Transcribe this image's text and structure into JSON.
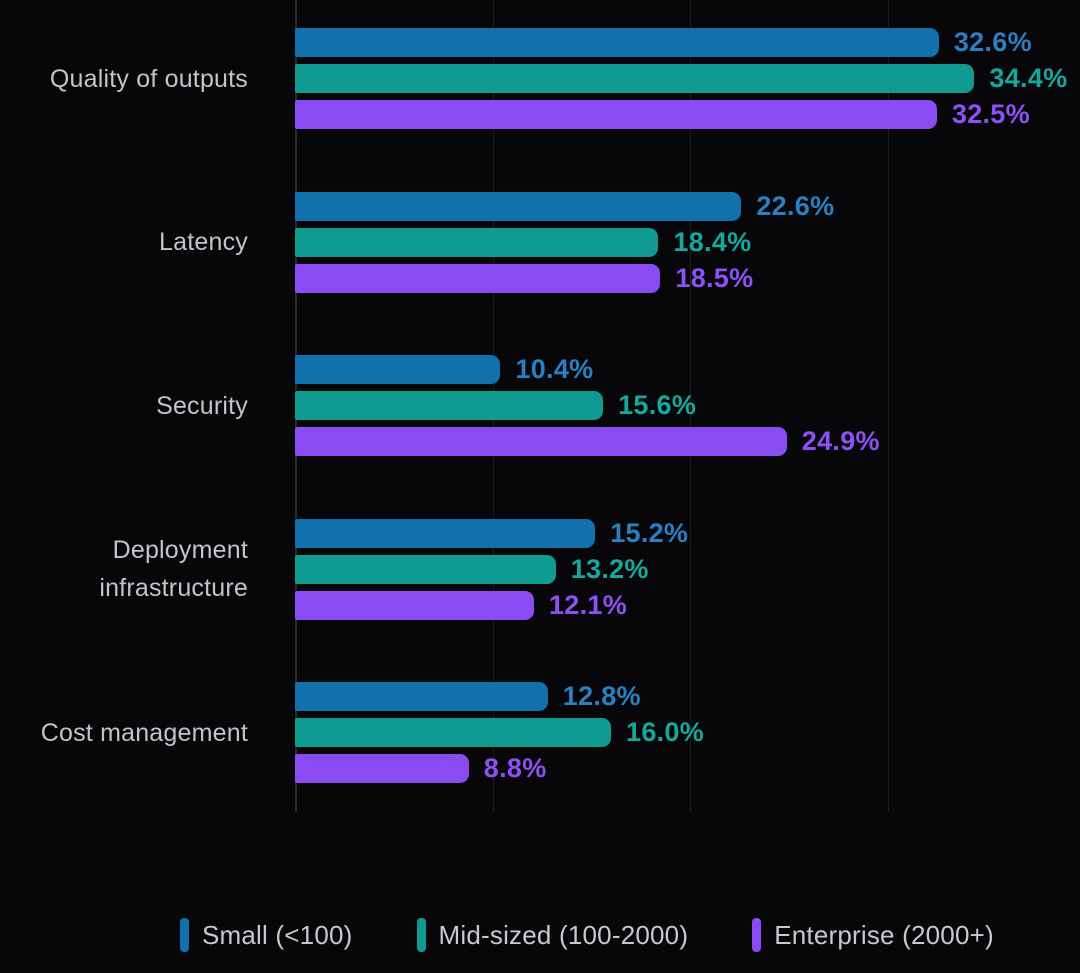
{
  "background_color": "#07070a",
  "gridline_color": "#1d1d20",
  "axis_color": "#2a2a2e",
  "category_label_color": "#c2c4c7",
  "legend_label_color": "#c7c9cc",
  "chart_data": {
    "type": "bar",
    "orientation": "horizontal",
    "title": "",
    "xlabel": "",
    "ylabel": "",
    "xlim": [
      0,
      40
    ],
    "gridline_step": 10,
    "grid": true,
    "legend_position": "bottom",
    "value_suffix": "%",
    "categories": [
      "Quality of outputs",
      "Latency",
      "Security",
      "Deployment infrastructure",
      "Cost management"
    ],
    "series": [
      {
        "name": "Small (<100)",
        "color": "#1270ad",
        "label_color": "#2a80c2",
        "values": [
          32.6,
          22.6,
          10.4,
          15.2,
          12.8
        ]
      },
      {
        "name": "Mid-sized (100-2000)",
        "color": "#0f9a92",
        "label_color": "#15a89c",
        "values": [
          34.4,
          18.4,
          15.6,
          13.2,
          16.0
        ]
      },
      {
        "name": "Enterprise (2000+)",
        "color": "#8a4bf2",
        "label_color": "#8e50f5",
        "values": [
          32.5,
          18.5,
          24.9,
          12.1,
          8.8
        ]
      }
    ]
  }
}
